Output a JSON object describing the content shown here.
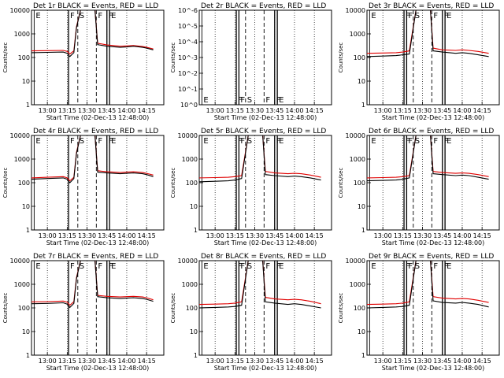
{
  "colors": {
    "events": "#000000",
    "lld": "#e00000",
    "background": "#ffffff"
  },
  "chart_data": [
    {
      "type": "line",
      "title": "Det 1r  BLACK = Events, RED = LLD",
      "xlabel": "Start Time (02-Dec-13 12:48:00)",
      "ylabel": "Counts/sec",
      "x_ticks": [
        "13:00",
        "13:15",
        "13:30",
        "13:45",
        "14:00",
        "14:15"
      ],
      "y_ticks": [
        "1",
        "10",
        "100",
        "1000",
        "10000"
      ],
      "ylim": [
        1,
        10000
      ],
      "y_scale": "log",
      "flags": [
        "E",
        "F",
        "S",
        "F",
        "F",
        "E"
      ],
      "series": [
        {
          "name": "Events",
          "x": [
            "12:48",
            "13:00",
            "13:12",
            "13:15",
            "13:17",
            "13:20",
            "13:22",
            "13:25",
            "13:30",
            "13:36",
            "13:38",
            "13:45",
            "13:55",
            "14:00",
            "14:05",
            "14:12",
            "14:15",
            "14:20"
          ],
          "values": [
            160,
            165,
            170,
            150,
            110,
            160,
            1800,
            10000,
            10000,
            10000,
            350,
            300,
            270,
            280,
            300,
            270,
            250,
            210
          ]
        },
        {
          "name": "LLD",
          "x": [
            "12:48",
            "13:00",
            "13:12",
            "13:15",
            "13:17",
            "13:20",
            "13:22",
            "13:25",
            "13:30",
            "13:36",
            "13:38",
            "13:45",
            "13:55",
            "14:00",
            "14:05",
            "14:12",
            "14:15",
            "14:20"
          ],
          "values": [
            190,
            195,
            200,
            180,
            140,
            190,
            2000,
            10000,
            10000,
            10000,
            400,
            340,
            300,
            310,
            320,
            290,
            270,
            230
          ]
        }
      ]
    },
    {
      "type": "line",
      "title": "Det 2r  BLACK = Events, RED = LLD",
      "xlabel": "Start Time (02-Dec-13 12:48:00)",
      "ylabel": "Counts/sec",
      "x_ticks": [
        "13:00",
        "13:15",
        "13:30",
        "13:45",
        "14:00",
        "14:15"
      ],
      "y_ticks": [
        "10^0",
        "10^-1",
        "10^-2",
        "10^-3",
        "10^-4",
        "10^-5",
        "10^-6"
      ],
      "y_scale": "log",
      "flags": [
        "E",
        "F",
        "F",
        "S",
        "F",
        "F",
        "E"
      ],
      "series": []
    },
    {
      "type": "line",
      "title": "Det 3r  BLACK = Events, RED = LLD",
      "xlabel": "Start Time (02-Dec-13 12:48:00)",
      "ylabel": "Counts/sec",
      "x_ticks": [
        "13:00",
        "13:15",
        "13:30",
        "13:45",
        "14:00",
        "14:15"
      ],
      "y_ticks": [
        "1",
        "10",
        "100",
        "1000",
        "10000"
      ],
      "ylim": [
        1,
        10000
      ],
      "y_scale": "log",
      "flags": [
        "E",
        "F",
        "F",
        "S",
        "F",
        "F",
        "E"
      ],
      "series": [
        {
          "name": "Events",
          "x": [
            "12:48",
            "13:00",
            "13:10",
            "13:15",
            "13:20",
            "13:25",
            "13:30",
            "13:36",
            "13:38",
            "13:45",
            "13:55",
            "14:00",
            "14:05",
            "14:12",
            "14:20"
          ],
          "values": [
            110,
            115,
            120,
            130,
            140,
            10000,
            10000,
            10000,
            190,
            170,
            150,
            160,
            150,
            130,
            110
          ]
        },
        {
          "name": "LLD",
          "x": [
            "12:48",
            "13:00",
            "13:10",
            "13:15",
            "13:20",
            "13:25",
            "13:30",
            "13:36",
            "13:38",
            "13:45",
            "13:55",
            "14:00",
            "14:05",
            "14:12",
            "14:20"
          ],
          "values": [
            150,
            155,
            160,
            170,
            190,
            10000,
            10000,
            10000,
            250,
            210,
            200,
            210,
            200,
            180,
            150
          ]
        }
      ]
    },
    {
      "type": "line",
      "title": "Det 4r  BLACK = Events, RED = LLD",
      "xlabel": "Start Time (02-Dec-13 12:48:00)",
      "ylabel": "Counts/sec",
      "x_ticks": [
        "13:00",
        "13:15",
        "13:30",
        "13:45",
        "14:00",
        "14:15"
      ],
      "y_ticks": [
        "1",
        "10",
        "100",
        "1000",
        "10000"
      ],
      "ylim": [
        1,
        10000
      ],
      "y_scale": "log",
      "flags": [
        "E",
        "F",
        "S",
        "F",
        "F",
        "E"
      ],
      "series": [
        {
          "name": "Events",
          "x": [
            "12:48",
            "13:00",
            "13:12",
            "13:15",
            "13:17",
            "13:20",
            "13:22",
            "13:25",
            "13:30",
            "13:36",
            "13:38",
            "13:45",
            "13:55",
            "14:00",
            "14:05",
            "14:12",
            "14:15",
            "14:20"
          ],
          "values": [
            140,
            150,
            160,
            140,
            100,
            150,
            1700,
            10000,
            10000,
            10000,
            280,
            260,
            240,
            250,
            260,
            240,
            220,
            180
          ]
        },
        {
          "name": "LLD",
          "x": [
            "12:48",
            "13:00",
            "13:12",
            "13:15",
            "13:17",
            "13:20",
            "13:22",
            "13:25",
            "13:30",
            "13:36",
            "13:38",
            "13:45",
            "13:55",
            "14:00",
            "14:05",
            "14:12",
            "14:15",
            "14:20"
          ],
          "values": [
            160,
            170,
            180,
            160,
            120,
            170,
            1900,
            10000,
            10000,
            10000,
            320,
            290,
            270,
            280,
            290,
            270,
            250,
            210
          ]
        }
      ]
    },
    {
      "type": "line",
      "title": "Det 5r  BLACK = Events, RED = LLD",
      "xlabel": "Start Time (02-Dec-13 12:48:00)",
      "ylabel": "Counts/sec",
      "x_ticks": [
        "13:00",
        "13:15",
        "13:30",
        "13:45",
        "14:00",
        "14:15"
      ],
      "y_ticks": [
        "1",
        "10",
        "100",
        "1000",
        "10000"
      ],
      "ylim": [
        1,
        10000
      ],
      "y_scale": "log",
      "flags": [
        "E",
        "F",
        "F",
        "S",
        "F",
        "F",
        "E"
      ],
      "series": [
        {
          "name": "Events",
          "x": [
            "12:48",
            "13:00",
            "13:10",
            "13:15",
            "13:20",
            "13:25",
            "13:30",
            "13:36",
            "13:38",
            "13:45",
            "13:55",
            "14:00",
            "14:05",
            "14:12",
            "14:20"
          ],
          "values": [
            110,
            115,
            120,
            130,
            150,
            10000,
            10000,
            10000,
            220,
            200,
            180,
            190,
            180,
            160,
            130
          ]
        },
        {
          "name": "LLD",
          "x": [
            "12:48",
            "13:00",
            "13:10",
            "13:15",
            "13:20",
            "13:25",
            "13:30",
            "13:36",
            "13:38",
            "13:45",
            "13:55",
            "14:00",
            "14:05",
            "14:12",
            "14:20"
          ],
          "values": [
            160,
            165,
            170,
            180,
            200,
            10000,
            10000,
            10000,
            300,
            260,
            240,
            250,
            240,
            210,
            170
          ]
        }
      ]
    },
    {
      "type": "line",
      "title": "Det 6r  BLACK = Events, RED = LLD",
      "xlabel": "Start Time (02-Dec-13 12:48:00)",
      "ylabel": "Counts/sec",
      "x_ticks": [
        "13:00",
        "13:15",
        "13:30",
        "13:45",
        "14:00",
        "14:15"
      ],
      "y_ticks": [
        "1",
        "10",
        "100",
        "1000",
        "10000"
      ],
      "ylim": [
        1,
        10000
      ],
      "y_scale": "log",
      "flags": [
        "E",
        "F",
        "F",
        "S",
        "F",
        "F",
        "E"
      ],
      "series": [
        {
          "name": "Events",
          "x": [
            "12:48",
            "13:00",
            "13:10",
            "13:15",
            "13:20",
            "13:25",
            "13:30",
            "13:36",
            "13:38",
            "13:45",
            "13:55",
            "14:00",
            "14:05",
            "14:12",
            "14:20"
          ],
          "values": [
            120,
            125,
            130,
            140,
            160,
            10000,
            10000,
            10000,
            240,
            220,
            200,
            210,
            200,
            170,
            140
          ]
        },
        {
          "name": "LLD",
          "x": [
            "12:48",
            "13:00",
            "13:10",
            "13:15",
            "13:20",
            "13:25",
            "13:30",
            "13:36",
            "13:38",
            "13:45",
            "13:55",
            "14:00",
            "14:05",
            "14:12",
            "14:20"
          ],
          "values": [
            160,
            165,
            170,
            180,
            200,
            10000,
            10000,
            10000,
            300,
            270,
            250,
            260,
            250,
            220,
            180
          ]
        }
      ]
    },
    {
      "type": "line",
      "title": "Det 7r  BLACK = Events, RED = LLD",
      "xlabel": "Start Time (02-Dec-13 12:48:00)",
      "ylabel": "Counts/sec",
      "x_ticks": [
        "13:00",
        "13:15",
        "13:30",
        "13:45",
        "14:00",
        "14:15"
      ],
      "y_ticks": [
        "1",
        "10",
        "100",
        "1000",
        "10000"
      ],
      "ylim": [
        1,
        10000
      ],
      "y_scale": "log",
      "flags": [
        "E",
        "F",
        "S",
        "F",
        "F",
        "E"
      ],
      "series": [
        {
          "name": "Events",
          "x": [
            "12:48",
            "13:00",
            "13:12",
            "13:15",
            "13:17",
            "13:20",
            "13:22",
            "13:25",
            "13:30",
            "13:36",
            "13:38",
            "13:45",
            "13:55",
            "14:00",
            "14:05",
            "14:12",
            "14:15",
            "14:20"
          ],
          "values": [
            150,
            155,
            165,
            145,
            105,
            155,
            1700,
            10000,
            10000,
            10000,
            300,
            270,
            250,
            260,
            270,
            250,
            230,
            190
          ]
        },
        {
          "name": "LLD",
          "x": [
            "12:48",
            "13:00",
            "13:12",
            "13:15",
            "13:17",
            "13:20",
            "13:22",
            "13:25",
            "13:30",
            "13:36",
            "13:38",
            "13:45",
            "13:55",
            "14:00",
            "14:05",
            "14:12",
            "14:15",
            "14:20"
          ],
          "values": [
            180,
            185,
            195,
            175,
            130,
            185,
            1900,
            10000,
            10000,
            10000,
            340,
            310,
            290,
            300,
            310,
            290,
            270,
            220
          ]
        }
      ]
    },
    {
      "type": "line",
      "title": "Det 8r  BLACK = Events, RED = LLD",
      "xlabel": "Start Time (02-Dec-13 12:48:00)",
      "ylabel": "Counts/sec",
      "x_ticks": [
        "13:00",
        "13:15",
        "13:30",
        "13:45",
        "14:00",
        "14:15"
      ],
      "y_ticks": [
        "1",
        "10",
        "100",
        "1000",
        "10000"
      ],
      "ylim": [
        1,
        10000
      ],
      "y_scale": "log",
      "flags": [
        "E",
        "F",
        "F",
        "S",
        "F",
        "F",
        "E"
      ],
      "series": [
        {
          "name": "Events",
          "x": [
            "12:48",
            "13:00",
            "13:10",
            "13:15",
            "13:20",
            "13:25",
            "13:30",
            "13:36",
            "13:38",
            "13:45",
            "13:55",
            "14:00",
            "14:05",
            "14:12",
            "14:20"
          ],
          "values": [
            100,
            105,
            110,
            115,
            130,
            10000,
            10000,
            10000,
            180,
            160,
            140,
            150,
            140,
            120,
            100
          ]
        },
        {
          "name": "LLD",
          "x": [
            "12:48",
            "13:00",
            "13:10",
            "13:15",
            "13:20",
            "13:25",
            "13:30",
            "13:36",
            "13:38",
            "13:45",
            "13:55",
            "14:00",
            "14:05",
            "14:12",
            "14:20"
          ],
          "values": [
            140,
            145,
            150,
            160,
            180,
            10000,
            10000,
            10000,
            280,
            240,
            220,
            230,
            220,
            190,
            150
          ]
        }
      ]
    },
    {
      "type": "line",
      "title": "Det 9r  BLACK = Events, RED = LLD",
      "xlabel": "Start Time (02-Dec-13 12:48:00)",
      "ylabel": "Counts/sec",
      "x_ticks": [
        "13:00",
        "13:15",
        "13:30",
        "13:45",
        "14:00",
        "14:15"
      ],
      "y_ticks": [
        "1",
        "10",
        "100",
        "1000",
        "10000"
      ],
      "ylim": [
        1,
        10000
      ],
      "y_scale": "log",
      "flags": [
        "E",
        "F",
        "F",
        "S",
        "F",
        "F",
        "E"
      ],
      "series": [
        {
          "name": "Events",
          "x": [
            "12:48",
            "13:00",
            "13:10",
            "13:15",
            "13:20",
            "13:25",
            "13:30",
            "13:36",
            "13:38",
            "13:45",
            "13:55",
            "14:00",
            "14:05",
            "14:12",
            "14:20"
          ],
          "values": [
            100,
            105,
            110,
            115,
            130,
            10000,
            10000,
            10000,
            200,
            170,
            160,
            170,
            160,
            140,
            110
          ]
        },
        {
          "name": "LLD",
          "x": [
            "12:48",
            "13:00",
            "13:10",
            "13:15",
            "13:20",
            "13:25",
            "13:30",
            "13:36",
            "13:38",
            "13:45",
            "13:55",
            "14:00",
            "14:05",
            "14:12",
            "14:20"
          ],
          "values": [
            140,
            145,
            150,
            160,
            180,
            10000,
            10000,
            10000,
            300,
            260,
            240,
            250,
            240,
            210,
            170
          ]
        }
      ]
    }
  ]
}
